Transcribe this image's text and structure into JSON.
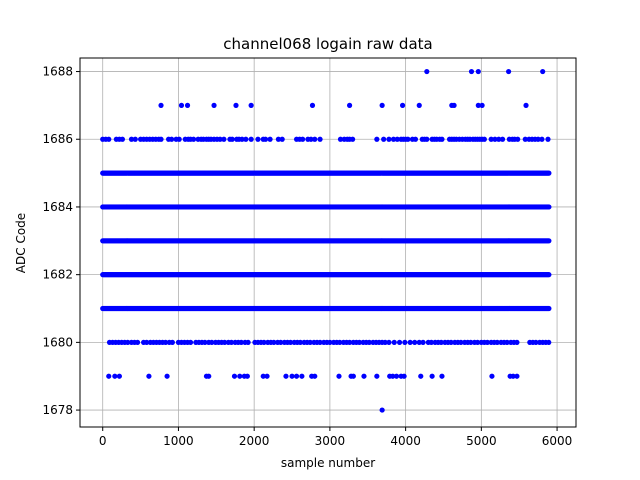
{
  "chart_data": {
    "type": "scatter",
    "title": "channel068 logain raw data",
    "xlabel": "sample number",
    "ylabel": "ADC Code",
    "xlim": [
      -300,
      6250
    ],
    "ylim": [
      1677.5,
      1688.4
    ],
    "xticks": [
      0,
      1000,
      2000,
      3000,
      4000,
      5000,
      6000
    ],
    "yticks": [
      1678,
      1680,
      1682,
      1684,
      1686,
      1688
    ],
    "grid": true,
    "marker_color": "#0000ff",
    "sample_range": [
      0,
      5900
    ],
    "dense_levels": [
      1681,
      1682,
      1683,
      1684,
      1685
    ],
    "sparse_levels": [
      {
        "y": 1680,
        "x": [
          90,
          130,
          170,
          210,
          250,
          290,
          330,
          380,
          420,
          460,
          540,
          580,
          630,
          670,
          710,
          750,
          790,
          830,
          880,
          920,
          1000,
          1040,
          1080,
          1120,
          1160,
          1230,
          1270,
          1310,
          1350,
          1400,
          1440,
          1490,
          1530,
          1570,
          1610,
          1660,
          1700,
          1750,
          1790,
          1830,
          1880,
          1920,
          2010,
          2050,
          2090,
          2130,
          2180,
          2220,
          2260,
          2310,
          2350,
          2400,
          2440,
          2480,
          2530,
          2570,
          2610,
          2660,
          2700,
          2740,
          2790,
          2830,
          2870,
          2920,
          2960,
          3000,
          3050,
          3090,
          3130,
          3180,
          3220,
          3260,
          3310,
          3350,
          3390,
          3440,
          3480,
          3520,
          3570,
          3610,
          3650,
          3690,
          3730,
          3780,
          3850,
          3920,
          3990,
          4060,
          4120,
          4180,
          4230,
          4300,
          4340,
          4390,
          4430,
          4470,
          4520,
          4560,
          4600,
          4650,
          4690,
          4730,
          4780,
          4820,
          4860,
          4910,
          4950,
          5000,
          5040,
          5080,
          5130,
          5170,
          5210,
          5260,
          5300,
          5340,
          5390,
          5430,
          5470,
          5640,
          5680,
          5720,
          5770,
          5810,
          5850,
          5890
        ]
      },
      {
        "y": 1679,
        "x": [
          80,
          160,
          220,
          610,
          850,
          1370,
          1400,
          1740,
          1810,
          1870,
          1910,
          2120,
          2170,
          2420,
          2500,
          2560,
          2630,
          2760,
          2800,
          3120,
          3280,
          3310,
          3450,
          3620,
          3790,
          3830,
          3880,
          3940,
          3980,
          4200,
          4350,
          4480,
          5140,
          5380,
          5420,
          5470
        ]
      },
      {
        "y": 1678,
        "x": [
          3690
        ]
      },
      {
        "y": 1686,
        "x": [
          0,
          40,
          80,
          180,
          220,
          260,
          380,
          430,
          500,
          540,
          580,
          620,
          660,
          700,
          740,
          770,
          870,
          910,
          970,
          1010,
          1090,
          1130,
          1160,
          1200,
          1260,
          1300,
          1330,
          1370,
          1400,
          1430,
          1470,
          1510,
          1550,
          1600,
          1680,
          1710,
          1770,
          1800,
          1840,
          1890,
          1960,
          2050,
          2120,
          2150,
          2210,
          2320,
          2370,
          2560,
          2600,
          2640,
          2710,
          2750,
          2800,
          2870,
          3140,
          3190,
          3230,
          3260,
          3300,
          3620,
          3710,
          3780,
          3840,
          3890,
          3940,
          3970,
          4000,
          4030,
          4090,
          4130,
          4220,
          4250,
          4280,
          4350,
          4380,
          4410,
          4450,
          4480,
          4580,
          4610,
          4640,
          4670,
          4710,
          4750,
          4790,
          4820,
          4850,
          4890,
          4920,
          4950,
          4980,
          5010,
          5040,
          5130,
          5180,
          5230,
          5280,
          5370,
          5410,
          5440,
          5480,
          5580,
          5630,
          5670,
          5710,
          5750,
          5800,
          5880
        ]
      },
      {
        "y": 1687,
        "x": [
          770,
          1040,
          1120,
          1470,
          1760,
          1960,
          2770,
          3260,
          3690,
          3960,
          4180,
          4610,
          4640,
          4960,
          5010,
          5590
        ]
      },
      {
        "y": 1688,
        "x": [
          4280,
          4870,
          4960,
          5360,
          5810
        ]
      }
    ]
  }
}
